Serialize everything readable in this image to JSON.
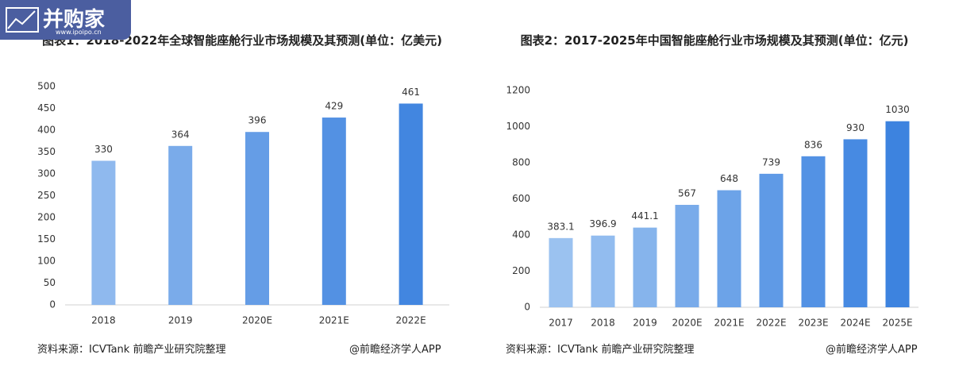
{
  "logo": {
    "name": "并购家",
    "url": "www.ipoipo.cn"
  },
  "chart_data": [
    {
      "type": "bar",
      "title": "图表1：2018-2022年全球智能座舱行业市场规模及其预测(单位：亿美元)",
      "categories": [
        "2018",
        "2019",
        "2020E",
        "2021E",
        "2022E"
      ],
      "values": [
        330,
        364,
        396,
        429,
        461
      ],
      "colors": [
        "#8fb9ee",
        "#7aabea",
        "#659de6",
        "#5391e3",
        "#4286e0"
      ],
      "ylim": [
        0,
        500
      ],
      "yticks": [
        0,
        50,
        100,
        150,
        200,
        250,
        300,
        350,
        400,
        450,
        500
      ],
      "grid": false,
      "source": "资料来源：ICVTank 前瞻产业研究院整理",
      "credit": "@前瞻经济学人APP"
    },
    {
      "type": "bar",
      "title": "图表2：2017-2025年中国智能座舱行业市场规模及其预测(单位：亿元)",
      "categories": [
        "2017",
        "2018",
        "2019",
        "2020E",
        "2021E",
        "2022E",
        "2023E",
        "2024E",
        "2025E"
      ],
      "values": [
        383.1,
        396.9,
        441.1,
        567,
        648,
        739,
        836,
        930,
        1030
      ],
      "colors": [
        "#9bc2f0",
        "#92bcef",
        "#86b4ec",
        "#79abea",
        "#6ca3e8",
        "#5f9ae6",
        "#5392e4",
        "#478ae2",
        "#3d83df"
      ],
      "ylim": [
        0,
        1200
      ],
      "yticks": [
        0,
        200,
        400,
        600,
        800,
        1000,
        1200
      ],
      "grid": false,
      "source": "资料来源：ICVTank 前瞻产业研究院整理",
      "credit": "@前瞻经济学人APP"
    }
  ]
}
